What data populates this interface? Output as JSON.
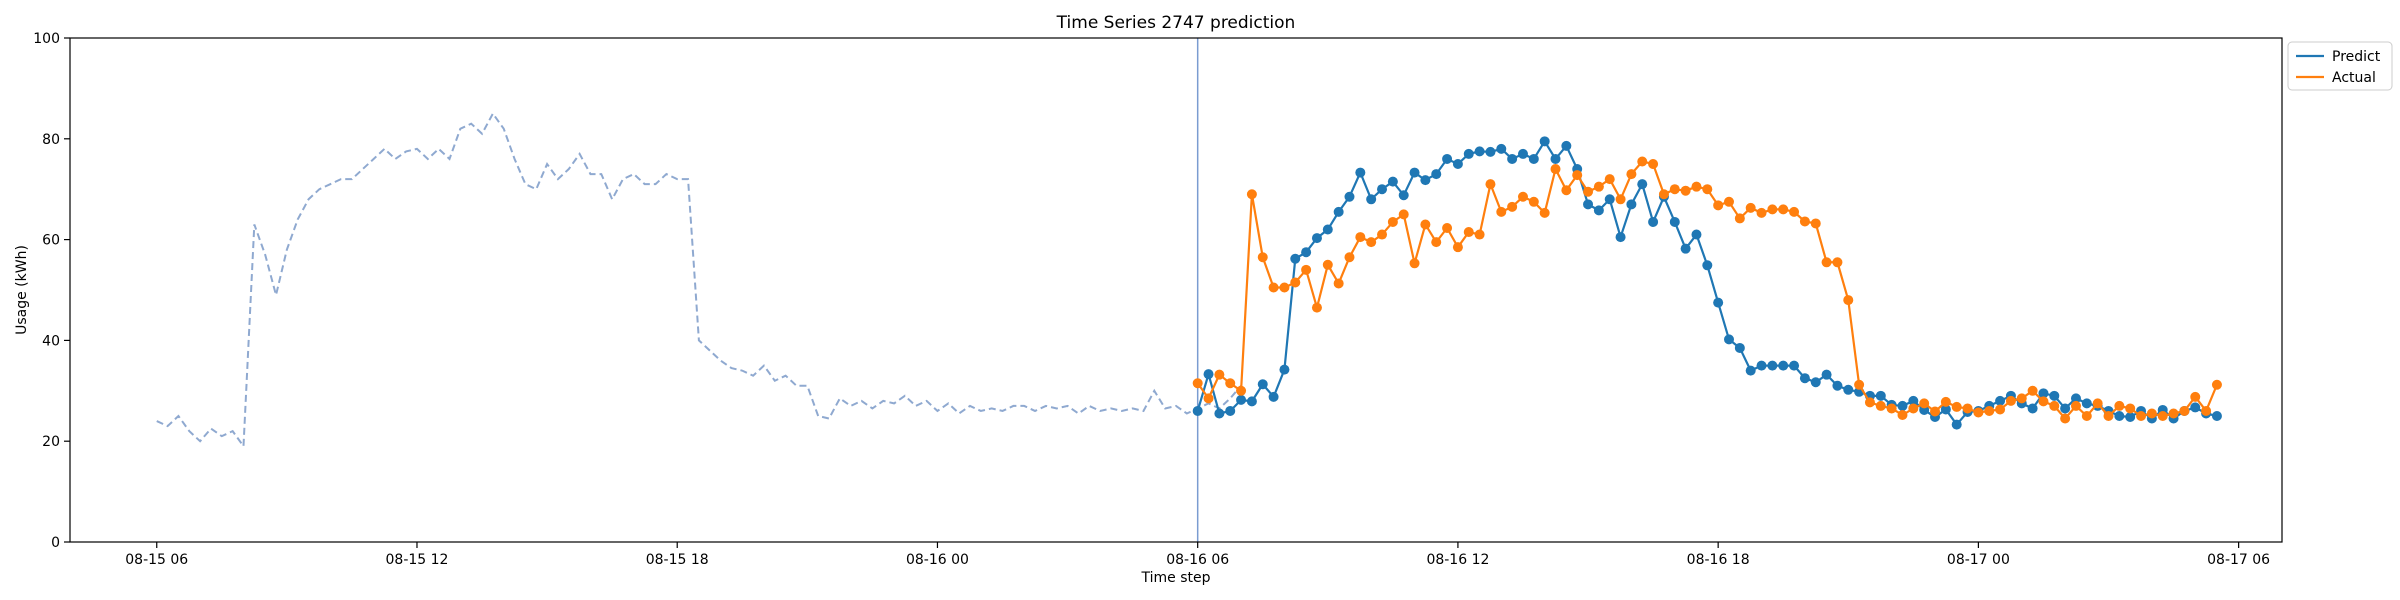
{
  "chart_data": {
    "type": "line",
    "title": "Time Series 2747 prediction",
    "xlabel": "Time step",
    "ylabel": "Usage (kWh)",
    "ylim": [
      0,
      100
    ],
    "xlim": [
      "2024-08-15 04:00",
      "2024-08-17 07:00"
    ],
    "yticks": [
      0,
      20,
      40,
      60,
      80,
      100
    ],
    "xticks": [
      {
        "t": "2024-08-15 06:00",
        "label": "08-15 06"
      },
      {
        "t": "2024-08-15 12:00",
        "label": "08-15 12"
      },
      {
        "t": "2024-08-15 18:00",
        "label": "08-15 18"
      },
      {
        "t": "2024-08-16 00:00",
        "label": "08-16 00"
      },
      {
        "t": "2024-08-16 06:00",
        "label": "08-16 06"
      },
      {
        "t": "2024-08-16 12:00",
        "label": "08-16 12"
      },
      {
        "t": "2024-08-16 18:00",
        "label": "08-16 18"
      },
      {
        "t": "2024-08-17 00:00",
        "label": "08-17 00"
      },
      {
        "t": "2024-08-17 06:00",
        "label": "08-17 06"
      }
    ],
    "grid": false,
    "legend_position": "outside top-right",
    "forecast_start": "2024-08-16 06:00",
    "history": {
      "start": "2024-08-15 06:00",
      "step_minutes": 15,
      "color": "#8fa9d0",
      "style": "dashed",
      "values": [
        24,
        23,
        25,
        22,
        20,
        22.5,
        21,
        22,
        19,
        63,
        57,
        49,
        58,
        64,
        68,
        70,
        71,
        72,
        72,
        74,
        76,
        78,
        76,
        77.5,
        78,
        76,
        78,
        76,
        82,
        83,
        81,
        85,
        82,
        76,
        71,
        70,
        75,
        72,
        74,
        77,
        73,
        73,
        68,
        72,
        73,
        71,
        71,
        73,
        72,
        72,
        40,
        38,
        36,
        34.5,
        34,
        33,
        35,
        32,
        33,
        31,
        31,
        25,
        24.5,
        28.5,
        27,
        28,
        26.5,
        28,
        27.5,
        29,
        27,
        28,
        26,
        27.5,
        25.5,
        27,
        26,
        26.5,
        26,
        27,
        27,
        26,
        27,
        26.5,
        27,
        25.5,
        27,
        26,
        26.5,
        26,
        26.5,
        26,
        30,
        26.5,
        27,
        25.5,
        26.5,
        27.5,
        26.5,
        28.5,
        31
      ]
    },
    "series": [
      {
        "name": "Predict",
        "color": "#1f77b4",
        "start": "2024-08-16 06:00",
        "step_minutes": 15,
        "values": [
          26,
          33.3,
          25.5,
          26,
          28.2,
          27.9,
          31.3,
          28.8,
          34.2,
          56.2,
          57.5,
          60.3,
          62,
          65.5,
          68.5,
          73.3,
          68,
          70,
          71.5,
          68.8,
          73.3,
          71.8,
          73,
          76,
          75,
          77,
          77.5,
          77.4,
          78,
          76,
          77,
          76,
          79.5,
          76,
          78.6,
          74,
          67,
          65.8,
          68,
          60.5,
          67,
          71,
          63.5,
          68.5,
          63.5,
          58.2,
          61,
          54.9,
          47.5,
          40.2,
          38.5,
          34,
          35,
          35,
          35,
          35,
          32.5,
          31.7,
          33.2,
          31,
          30.2,
          29.8,
          29,
          29,
          27.2,
          27,
          28,
          26.2,
          24.8,
          26.3,
          23.3,
          25.8,
          26,
          27,
          28,
          29,
          27.5,
          26.5,
          29.5,
          29,
          26.5,
          28.5,
          27.5,
          27,
          26,
          25,
          24.8,
          26,
          24.5,
          26.2,
          24.5,
          26,
          26.7,
          25.5,
          25
        ]
      },
      {
        "name": "Actual",
        "color": "#ff7f0e",
        "start": "2024-08-16 06:00",
        "step_minutes": 15,
        "values": [
          31.5,
          28.5,
          33.2,
          31.5,
          30,
          69,
          56.5,
          50.5,
          50.5,
          51.5,
          54,
          46.5,
          55,
          51.3,
          56.5,
          60.5,
          59.5,
          61,
          63.5,
          65,
          55.3,
          63,
          59.5,
          62.3,
          58.5,
          61.5,
          61,
          71,
          65.5,
          66.5,
          68.5,
          67.5,
          65.3,
          74,
          69.8,
          72.8,
          69.5,
          70.5,
          72,
          68,
          73,
          75.5,
          75,
          69,
          70,
          69.7,
          70.5,
          70,
          66.8,
          67.5,
          64.2,
          66.3,
          65.3,
          66,
          66,
          65.5,
          63.6,
          63.2,
          55.5,
          55.5,
          48,
          31.2,
          27.7,
          27,
          26.5,
          25.2,
          26.5,
          27.5,
          25.9,
          27.8,
          26.8,
          26.5,
          25.7,
          26,
          26.3,
          28,
          28.5,
          30,
          27.9,
          27,
          24.5,
          27,
          25,
          27.5,
          25,
          27,
          26.5,
          25,
          25.5,
          25,
          25.5,
          26,
          28.8,
          26,
          31.2
        ]
      }
    ]
  }
}
